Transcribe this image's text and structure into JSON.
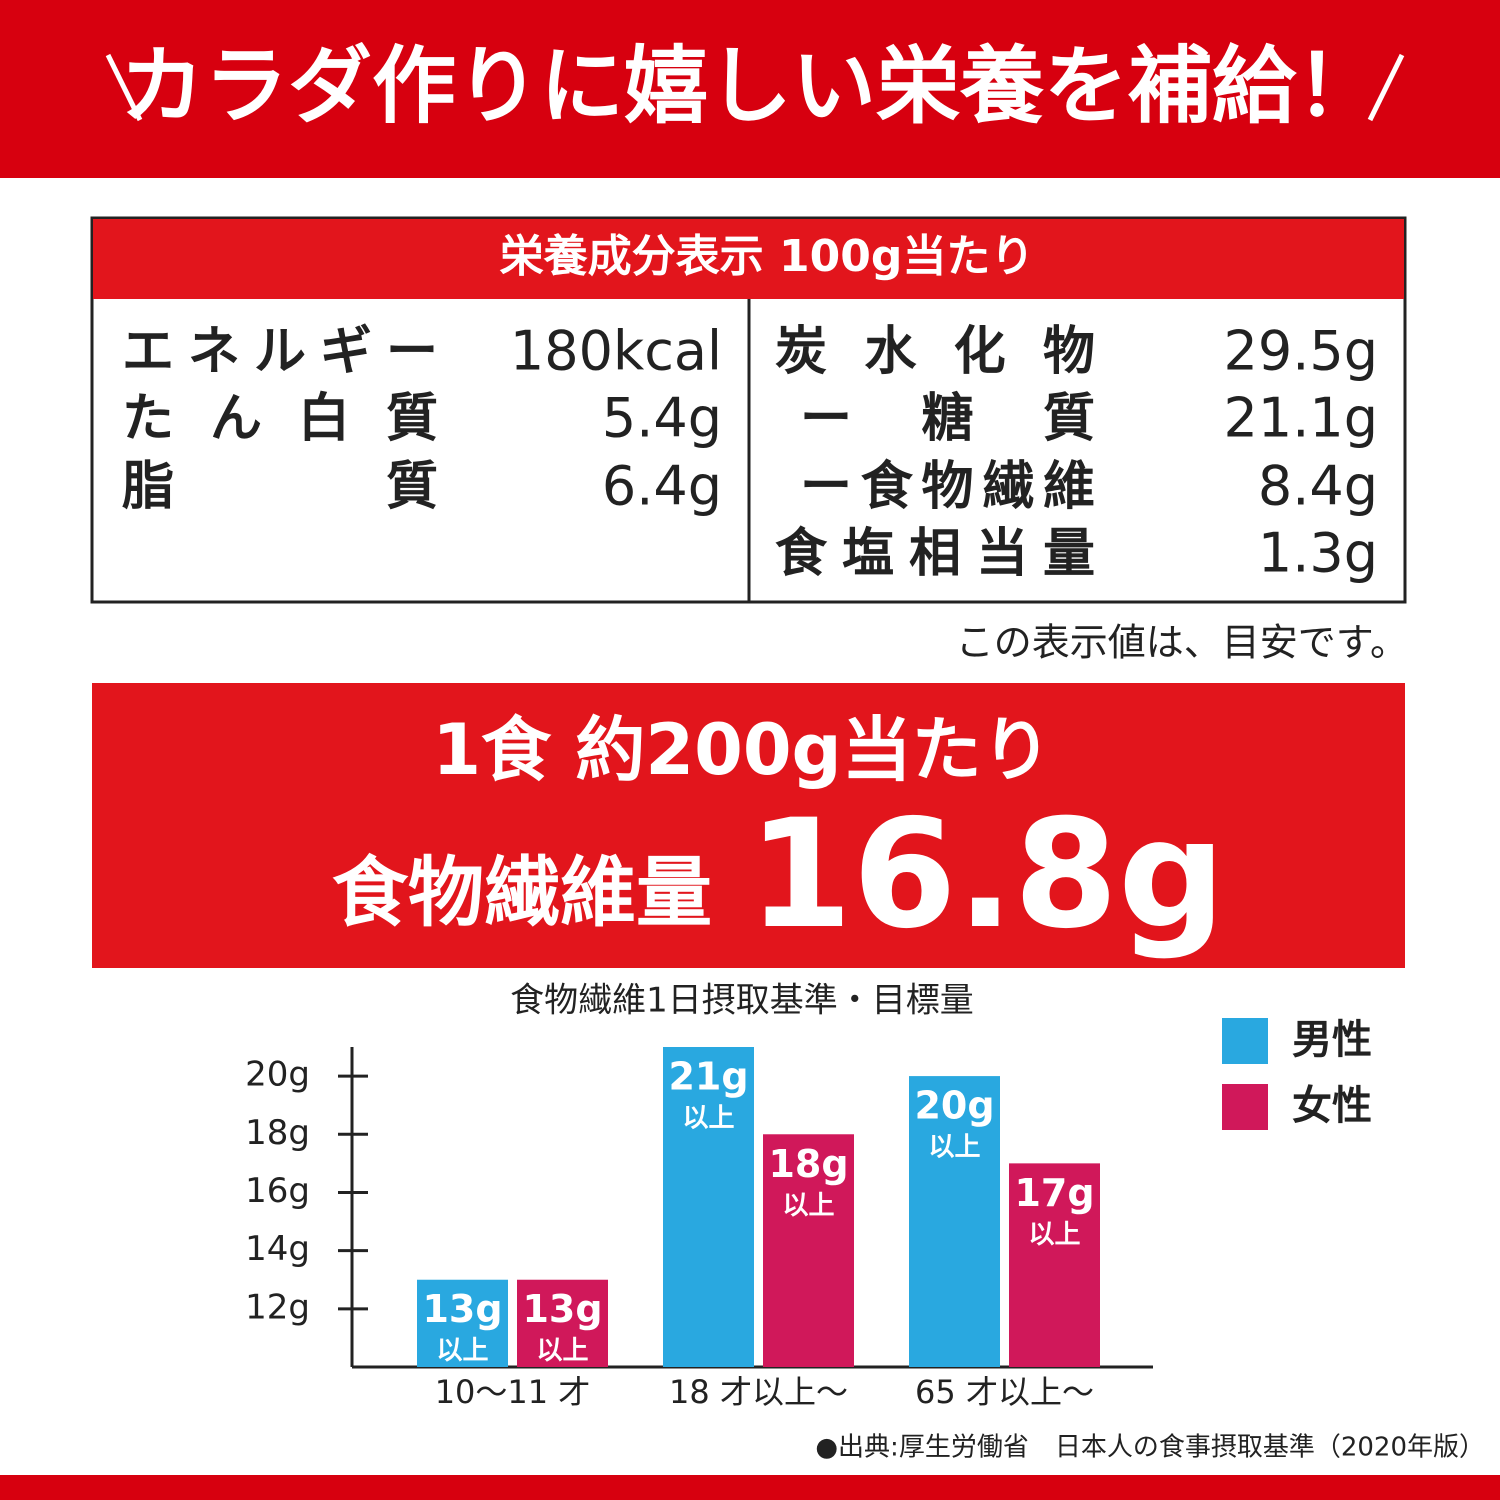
{
  "header": {
    "title": "カラダ作りに嬉しい栄養を補給！"
  },
  "table": {
    "title": "栄養成分表示 100g当たり",
    "left": [
      {
        "label": "エネルギー",
        "value": "180kcal"
      },
      {
        "label": "たん白質",
        "value": "5.4g"
      },
      {
        "label": "脂質",
        "value": "6.4g"
      }
    ],
    "right": [
      {
        "label": "炭水化物",
        "value": "29.5g"
      },
      {
        "label": "ー糖質",
        "value": "21.1g"
      },
      {
        "label": "ー食物繊維",
        "value": "8.4g"
      },
      {
        "label": "食塩相当量",
        "value": "1.3g"
      }
    ],
    "note": "この表示値は、目安です。"
  },
  "highlight": {
    "line1": "1食 約200g当たり",
    "label": "食物繊維量",
    "amount": "16.8g"
  },
  "chart_data": {
    "type": "bar",
    "title": "食物繊維1日摂取基準・目標量",
    "categories": [
      "10〜11 才",
      "18 才以上〜",
      "65 才以上〜"
    ],
    "series": [
      {
        "name": "男性",
        "color": "#29a8e0",
        "values": [
          13,
          21,
          20
        ],
        "value_labels": [
          "13g",
          "21g",
          "20g"
        ]
      },
      {
        "name": "女性",
        "color": "#d0185a",
        "values": [
          13,
          18,
          17
        ],
        "value_labels": [
          "13g",
          "18g",
          "17g"
        ]
      }
    ],
    "value_note": "以上",
    "ylim": [
      10,
      21
    ],
    "yticks": [
      {
        "value": 12,
        "label": "12g"
      },
      {
        "value": 14,
        "label": "14g"
      },
      {
        "value": 16,
        "label": "16g"
      },
      {
        "value": 18,
        "label": "18g"
      },
      {
        "value": 20,
        "label": "20g"
      }
    ],
    "legend": "top-right"
  },
  "source": "●出典:厚生労働省　日本人の食事摂取基準（2020年版）"
}
